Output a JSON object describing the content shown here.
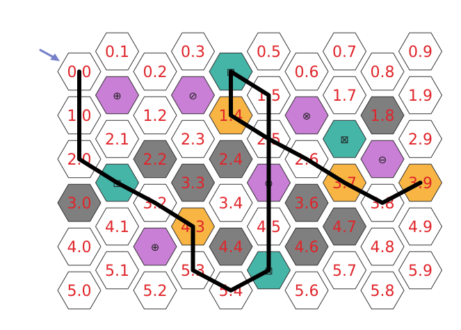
{
  "puzzle": {
    "start_marker": "arrow-icon",
    "colors": {
      "empty": "#ffffff",
      "wall": "#7f7f7f",
      "teal": "#45b5a8",
      "purple": "#c97fd6",
      "orange": "#f8b543",
      "path": "#000000",
      "label": "#e0242a",
      "arrow": "#7580c8"
    },
    "cells": [
      {
        "id": "0.0",
        "col": 0,
        "row": 0,
        "type": "empty",
        "label": "0.0",
        "symbol": ""
      },
      {
        "id": "1.0",
        "col": 0,
        "row": 1,
        "type": "empty",
        "label": "1.0",
        "symbol": ""
      },
      {
        "id": "2.0",
        "col": 0,
        "row": 2,
        "type": "empty",
        "label": "2.0",
        "symbol": ""
      },
      {
        "id": "3.0",
        "col": 0,
        "row": 3,
        "type": "wall",
        "label": "3.0",
        "symbol": ""
      },
      {
        "id": "4.0",
        "col": 0,
        "row": 4,
        "type": "empty",
        "label": "4.0",
        "symbol": ""
      },
      {
        "id": "5.0",
        "col": 0,
        "row": 5,
        "type": "empty",
        "label": "5.0",
        "symbol": ""
      },
      {
        "id": "0.1",
        "col": 1,
        "row": 0,
        "type": "empty",
        "label": "0.1",
        "symbol": ""
      },
      {
        "id": "1.1",
        "col": 1,
        "row": 1,
        "type": "purple",
        "label": "",
        "symbol": "⊕"
      },
      {
        "id": "2.1",
        "col": 1,
        "row": 2,
        "type": "empty",
        "label": "2.1",
        "symbol": ""
      },
      {
        "id": "3.1",
        "col": 1,
        "row": 3,
        "type": "teal",
        "label": "",
        "symbol": "⊞"
      },
      {
        "id": "4.1",
        "col": 1,
        "row": 4,
        "type": "empty",
        "label": "4.1",
        "symbol": ""
      },
      {
        "id": "5.1",
        "col": 1,
        "row": 5,
        "type": "empty",
        "label": "5.1",
        "symbol": ""
      },
      {
        "id": "0.2",
        "col": 2,
        "row": 0,
        "type": "empty",
        "label": "0.2",
        "symbol": ""
      },
      {
        "id": "1.2",
        "col": 2,
        "row": 1,
        "type": "empty",
        "label": "1.2",
        "symbol": ""
      },
      {
        "id": "2.2",
        "col": 2,
        "row": 2,
        "type": "wall",
        "label": "2.2",
        "symbol": ""
      },
      {
        "id": "3.2",
        "col": 2,
        "row": 3,
        "type": "empty",
        "label": "3.2",
        "symbol": ""
      },
      {
        "id": "4.2",
        "col": 2,
        "row": 4,
        "type": "purple",
        "label": "",
        "symbol": "⊕"
      },
      {
        "id": "5.2",
        "col": 2,
        "row": 5,
        "type": "empty",
        "label": "5.2",
        "symbol": ""
      },
      {
        "id": "0.3",
        "col": 3,
        "row": 0,
        "type": "empty",
        "label": "0.3",
        "symbol": ""
      },
      {
        "id": "1.3",
        "col": 3,
        "row": 1,
        "type": "purple",
        "label": "",
        "symbol": "⊘"
      },
      {
        "id": "2.3",
        "col": 3,
        "row": 2,
        "type": "empty",
        "label": "2.3",
        "symbol": ""
      },
      {
        "id": "3.3",
        "col": 3,
        "row": 3,
        "type": "wall",
        "label": "3.3",
        "symbol": ""
      },
      {
        "id": "4.3",
        "col": 3,
        "row": 4,
        "type": "orange",
        "label": "4.3",
        "symbol": ""
      },
      {
        "id": "5.3",
        "col": 3,
        "row": 5,
        "type": "empty",
        "label": "5.3",
        "symbol": ""
      },
      {
        "id": "0.4",
        "col": 4,
        "row": 0,
        "type": "teal",
        "label": "",
        "symbol": "⊞"
      },
      {
        "id": "1.4",
        "col": 4,
        "row": 1,
        "type": "orange",
        "label": "1.4",
        "symbol": ""
      },
      {
        "id": "2.4",
        "col": 4,
        "row": 2,
        "type": "wall",
        "label": "2.4",
        "symbol": ""
      },
      {
        "id": "3.4",
        "col": 4,
        "row": 3,
        "type": "empty",
        "label": "3.4",
        "symbol": ""
      },
      {
        "id": "4.4",
        "col": 4,
        "row": 4,
        "type": "wall",
        "label": "4.4",
        "symbol": ""
      },
      {
        "id": "5.4",
        "col": 4,
        "row": 5,
        "type": "empty",
        "label": "5.4",
        "symbol": ""
      },
      {
        "id": "0.5",
        "col": 5,
        "row": 0,
        "type": "empty",
        "label": "0.5",
        "symbol": ""
      },
      {
        "id": "1.5",
        "col": 5,
        "row": 1,
        "type": "empty",
        "label": "1.5",
        "symbol": ""
      },
      {
        "id": "2.5",
        "col": 5,
        "row": 2,
        "type": "empty",
        "label": "2.5",
        "symbol": ""
      },
      {
        "id": "3.5",
        "col": 5,
        "row": 3,
        "type": "purple",
        "label": "",
        "symbol": "⊗"
      },
      {
        "id": "4.5",
        "col": 5,
        "row": 4,
        "type": "empty",
        "label": "4.5",
        "symbol": ""
      },
      {
        "id": "5.5",
        "col": 5,
        "row": 5,
        "type": "teal",
        "label": "",
        "symbol": "⊠"
      },
      {
        "id": "0.6",
        "col": 6,
        "row": 0,
        "type": "empty",
        "label": "0.6",
        "symbol": ""
      },
      {
        "id": "1.6",
        "col": 6,
        "row": 1,
        "type": "purple",
        "label": "",
        "symbol": "⊗"
      },
      {
        "id": "2.6",
        "col": 6,
        "row": 2,
        "type": "empty",
        "label": "2.6",
        "symbol": ""
      },
      {
        "id": "3.6",
        "col": 6,
        "row": 3,
        "type": "wall",
        "label": "3.6",
        "symbol": ""
      },
      {
        "id": "4.6",
        "col": 6,
        "row": 4,
        "type": "wall",
        "label": "4.6",
        "symbol": ""
      },
      {
        "id": "5.6",
        "col": 6,
        "row": 5,
        "type": "empty",
        "label": "5.6",
        "symbol": ""
      },
      {
        "id": "0.7",
        "col": 7,
        "row": 0,
        "type": "empty",
        "label": "0.7",
        "symbol": ""
      },
      {
        "id": "1.7",
        "col": 7,
        "row": 1,
        "type": "empty",
        "label": "1.7",
        "symbol": ""
      },
      {
        "id": "2.7",
        "col": 7,
        "row": 2,
        "type": "teal",
        "label": "",
        "symbol": "⊠"
      },
      {
        "id": "3.7",
        "col": 7,
        "row": 3,
        "type": "orange",
        "label": "3.7",
        "symbol": ""
      },
      {
        "id": "4.7",
        "col": 7,
        "row": 4,
        "type": "wall",
        "label": "4.7",
        "symbol": ""
      },
      {
        "id": "5.7",
        "col": 7,
        "row": 5,
        "type": "empty",
        "label": "5.7",
        "symbol": ""
      },
      {
        "id": "0.8",
        "col": 8,
        "row": 0,
        "type": "empty",
        "label": "0.8",
        "symbol": ""
      },
      {
        "id": "1.8",
        "col": 8,
        "row": 1,
        "type": "wall",
        "label": "1.8",
        "symbol": ""
      },
      {
        "id": "2.8",
        "col": 8,
        "row": 2,
        "type": "purple",
        "label": "",
        "symbol": "⊖"
      },
      {
        "id": "3.8",
        "col": 8,
        "row": 3,
        "type": "empty",
        "label": "3.8",
        "symbol": ""
      },
      {
        "id": "4.8",
        "col": 8,
        "row": 4,
        "type": "empty",
        "label": "4.8",
        "symbol": ""
      },
      {
        "id": "5.8",
        "col": 8,
        "row": 5,
        "type": "empty",
        "label": "5.8",
        "symbol": ""
      },
      {
        "id": "0.9",
        "col": 9,
        "row": 0,
        "type": "empty",
        "label": "0.9",
        "symbol": ""
      },
      {
        "id": "1.9",
        "col": 9,
        "row": 1,
        "type": "empty",
        "label": "1.9",
        "symbol": ""
      },
      {
        "id": "2.9",
        "col": 9,
        "row": 2,
        "type": "empty",
        "label": "2.9",
        "symbol": ""
      },
      {
        "id": "3.9",
        "col": 9,
        "row": 3,
        "type": "orange",
        "label": "3.9",
        "symbol": ""
      },
      {
        "id": "4.9",
        "col": 9,
        "row": 4,
        "type": "empty",
        "label": "4.9",
        "symbol": ""
      },
      {
        "id": "5.9",
        "col": 9,
        "row": 5,
        "type": "empty",
        "label": "5.9",
        "symbol": ""
      }
    ],
    "path_cells": [
      "0.0",
      "1.0",
      "2.0",
      "3.1",
      "3.2",
      "4.3",
      "5.3",
      "5.4",
      "5.5",
      "4.5",
      "3.5",
      "2.5",
      "1.5",
      "0.4",
      "1.4",
      "2.5",
      "2.6",
      "3.7",
      "3.8",
      "3.9"
    ]
  }
}
